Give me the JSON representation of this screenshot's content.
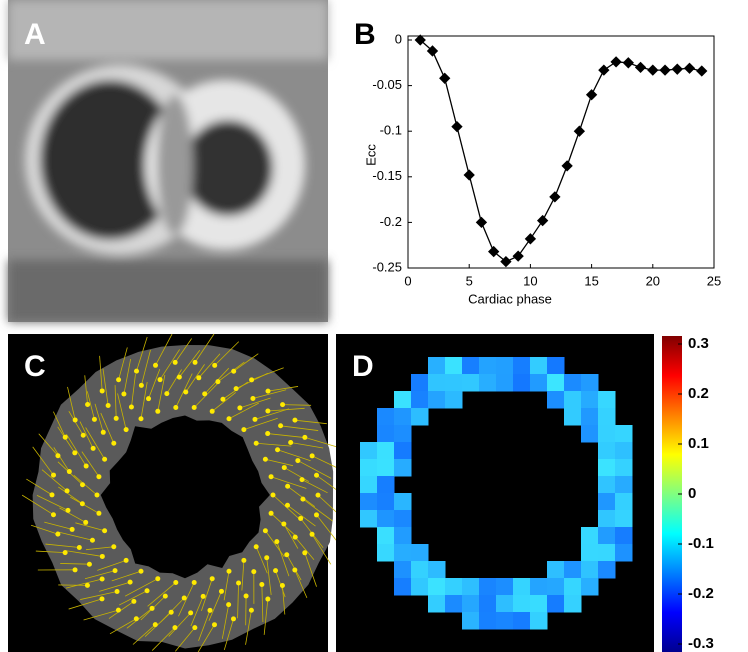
{
  "panels": [
    "A",
    "B",
    "C",
    "D"
  ],
  "chart_data": [
    {
      "type": "line",
      "x_label": "Cardiac phase",
      "y_label": "Ecc",
      "x": [
        1,
        2,
        3,
        4,
        5,
        6,
        7,
        8,
        9,
        10,
        11,
        12,
        13,
        14,
        15,
        16,
        17,
        18,
        19,
        20,
        21,
        22,
        23,
        24
      ],
      "series": [
        {
          "color": "#000000",
          "values": [
            0,
            -0.012,
            -0.042,
            -0.095,
            -0.148,
            -0.2,
            -0.232,
            -0.243,
            -0.237,
            -0.218,
            -0.198,
            -0.172,
            -0.138,
            -0.1,
            -0.06,
            -0.033,
            -0.024,
            -0.025,
            -0.03,
            -0.033,
            -0.033,
            -0.032,
            -0.031,
            -0.034
          ]
        }
      ],
      "xlim": [
        0,
        25
      ],
      "xticks": [
        0,
        5,
        10,
        15,
        20,
        25
      ],
      "ylim": [
        -0.25,
        0
      ],
      "yticks": [
        -0.25,
        -0.2,
        -0.15,
        -0.1,
        -0.05,
        0
      ]
    },
    {
      "type": "colorbar",
      "colormap": "jet",
      "ylim": [
        -0.3,
        0.3
      ],
      "yticks": [
        -0.3,
        -0.2,
        -0.1,
        0,
        0.1,
        0.2,
        0.3
      ]
    }
  ]
}
